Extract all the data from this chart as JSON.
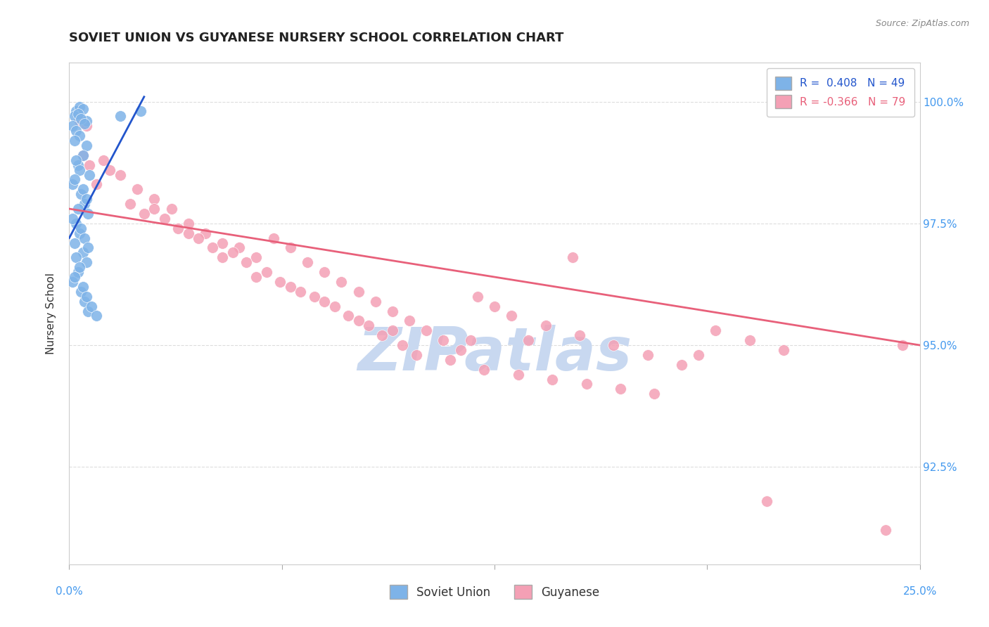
{
  "title": "SOVIET UNION VS GUYANESE NURSERY SCHOOL CORRELATION CHART",
  "source": "Source: ZipAtlas.com",
  "ylabel": "Nursery School",
  "xmin": 0.0,
  "xmax": 25.0,
  "ymin": 90.5,
  "ymax": 100.8,
  "blue_R": 0.408,
  "blue_N": 49,
  "pink_R": -0.366,
  "pink_N": 79,
  "blue_color": "#7EB3E8",
  "blue_line_color": "#2255CC",
  "pink_color": "#F4A0B5",
  "pink_line_color": "#E8607A",
  "blue_scatter_x": [
    0.2,
    0.3,
    0.15,
    0.4,
    0.5,
    0.25,
    0.1,
    0.35,
    0.45,
    0.2,
    0.3,
    0.15,
    0.5,
    0.4,
    0.25,
    0.6,
    0.1,
    0.35,
    0.45,
    0.55,
    0.2,
    0.3,
    0.15,
    0.4,
    0.5,
    0.25,
    0.1,
    0.35,
    0.45,
    0.55,
    0.2,
    0.3,
    0.15,
    0.4,
    0.5,
    0.25,
    0.1,
    0.35,
    0.45,
    0.55,
    0.2,
    0.3,
    0.15,
    0.4,
    0.5,
    0.65,
    0.8,
    1.5,
    2.1
  ],
  "blue_scatter_y": [
    99.8,
    99.9,
    99.7,
    99.85,
    99.6,
    99.75,
    99.5,
    99.65,
    99.55,
    99.4,
    99.3,
    99.2,
    99.1,
    98.9,
    98.7,
    98.5,
    98.3,
    98.1,
    97.9,
    97.7,
    97.5,
    97.3,
    97.1,
    96.9,
    96.7,
    96.5,
    96.3,
    96.1,
    95.9,
    95.7,
    98.8,
    98.6,
    98.4,
    98.2,
    98.0,
    97.8,
    97.6,
    97.4,
    97.2,
    97.0,
    96.8,
    96.6,
    96.4,
    96.2,
    96.0,
    95.8,
    95.6,
    99.7,
    99.8
  ],
  "pink_scatter_x": [
    0.3,
    0.5,
    1.0,
    1.5,
    2.0,
    2.5,
    3.0,
    3.5,
    4.0,
    4.5,
    5.0,
    5.5,
    6.0,
    6.5,
    7.0,
    7.5,
    8.0,
    8.5,
    9.0,
    9.5,
    10.0,
    10.5,
    11.0,
    11.5,
    12.0,
    12.5,
    13.0,
    14.0,
    15.0,
    16.0,
    17.0,
    18.0,
    19.0,
    20.0,
    21.0,
    0.4,
    0.6,
    0.8,
    1.2,
    1.8,
    2.2,
    2.8,
    3.2,
    3.8,
    4.2,
    4.8,
    5.2,
    5.8,
    6.2,
    6.8,
    7.2,
    7.8,
    8.2,
    8.8,
    9.2,
    9.8,
    10.2,
    11.2,
    12.2,
    13.2,
    14.2,
    15.2,
    16.2,
    17.2,
    2.5,
    3.5,
    4.5,
    5.5,
    6.5,
    7.5,
    8.5,
    9.5,
    13.5,
    18.5,
    24.5,
    11.8,
    24.0,
    14.8,
    20.5
  ],
  "pink_scatter_y": [
    99.6,
    99.5,
    98.8,
    98.5,
    98.2,
    98.0,
    97.8,
    97.5,
    97.3,
    97.1,
    97.0,
    96.8,
    97.2,
    97.0,
    96.7,
    96.5,
    96.3,
    96.1,
    95.9,
    95.7,
    95.5,
    95.3,
    95.1,
    94.9,
    96.0,
    95.8,
    95.6,
    95.4,
    95.2,
    95.0,
    94.8,
    94.6,
    95.3,
    95.1,
    94.9,
    98.9,
    98.7,
    98.3,
    98.6,
    97.9,
    97.7,
    97.6,
    97.4,
    97.2,
    97.0,
    96.9,
    96.7,
    96.5,
    96.3,
    96.1,
    96.0,
    95.8,
    95.6,
    95.4,
    95.2,
    95.0,
    94.8,
    94.7,
    94.5,
    94.4,
    94.3,
    94.2,
    94.1,
    94.0,
    97.8,
    97.3,
    96.8,
    96.4,
    96.2,
    95.9,
    95.5,
    95.3,
    95.1,
    94.8,
    95.0,
    95.1,
    91.2,
    96.8,
    91.8
  ],
  "blue_line_x": [
    0.0,
    2.2
  ],
  "blue_line_y": [
    97.2,
    100.1
  ],
  "pink_line_x": [
    0.0,
    25.0
  ],
  "pink_line_y": [
    97.8,
    95.0
  ],
  "legend_blue_label": "Soviet Union",
  "legend_pink_label": "Guyanese",
  "watermark": "ZIPatlas",
  "watermark_color": "#C8D8F0",
  "background_color": "#FFFFFF",
  "grid_color": "#DDDDDD"
}
